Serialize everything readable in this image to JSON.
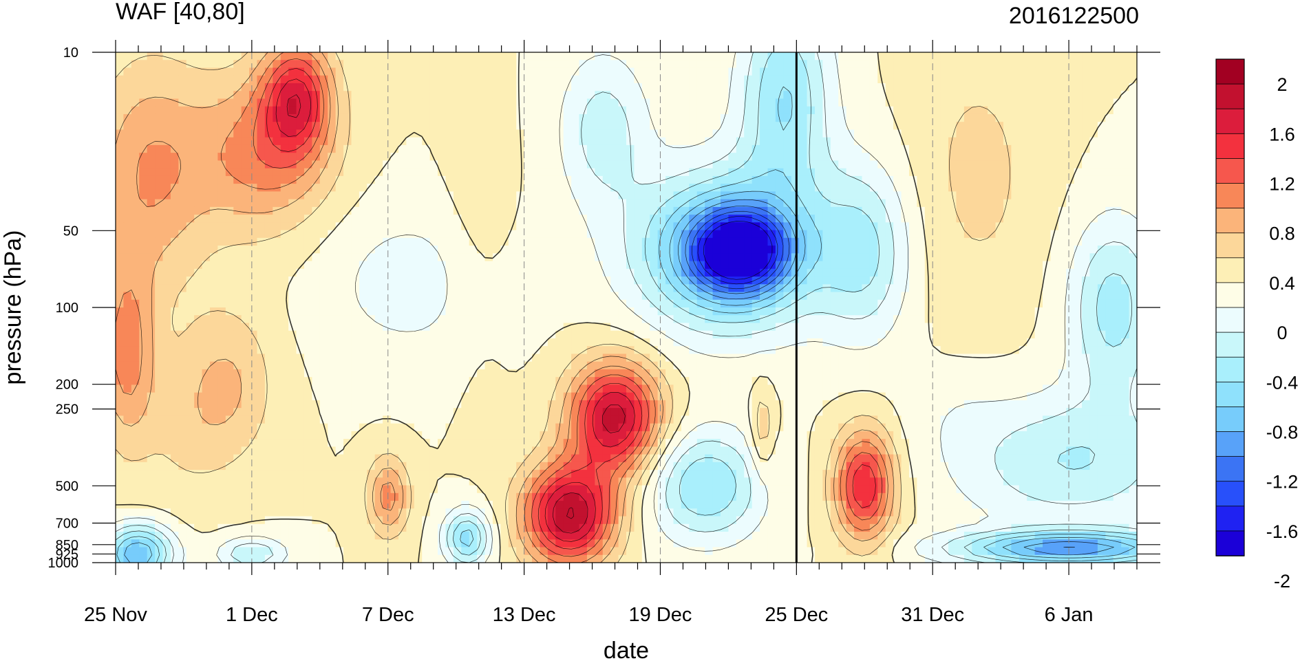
{
  "chart_data": {
    "type": "heatmap",
    "title_left": "WAF [40,80]",
    "title_right": "2016122500",
    "xlabel": "date",
    "ylabel": "pressure (hPa)",
    "x_ticks": [
      {
        "day": 0,
        "label": "25 Nov"
      },
      {
        "day": 6,
        "label": "1 Dec"
      },
      {
        "day": 12,
        "label": "7 Dec"
      },
      {
        "day": 18,
        "label": "13 Dec"
      },
      {
        "day": 24,
        "label": "19 Dec"
      },
      {
        "day": 30,
        "label": "25 Dec"
      },
      {
        "day": 36,
        "label": "31 Dec"
      },
      {
        "day": 42,
        "label": "6 Jan"
      }
    ],
    "x_range_days": [
      0,
      45
    ],
    "marker_day": 30,
    "y_ticks": [
      {
        "p": 10,
        "label": "10"
      },
      {
        "p": 50,
        "label": "50"
      },
      {
        "p": 100,
        "label": "100"
      },
      {
        "p": 200,
        "label": "200"
      },
      {
        "p": 250,
        "label": "250"
      },
      {
        "p": 500,
        "label": "500"
      },
      {
        "p": 700,
        "label": "700"
      },
      {
        "p": 850,
        "label": "850"
      },
      {
        "p": 925,
        "label": "925"
      },
      {
        "p": 1000,
        "label": "1000"
      }
    ],
    "y_scale": "log-pressure",
    "y_range": [
      1000,
      10
    ],
    "colorbar": {
      "colors": [
        "#1b00d8",
        "#1f22f2",
        "#2850fa",
        "#3b74f4",
        "#58a2f9",
        "#77ccfb",
        "#8fe1fc",
        "#a9effc",
        "#c9f7fa",
        "#ecfcfe",
        "#fefde7",
        "#fdefb6",
        "#fcd79a",
        "#fbb47a",
        "#f88758",
        "#f6574d",
        "#f3313e",
        "#dc1d3c",
        "#c2112f",
        "#a20022"
      ],
      "tick_labels": [
        "2",
        "1.6",
        "1.2",
        "0.8",
        "0.4",
        "0",
        "-0.4",
        "-0.8",
        "-1.2",
        "-1.6",
        "-2"
      ]
    },
    "fields": [
      {
        "v": 0.6,
        "d": 1.5,
        "p": 30,
        "rx": 2.5,
        "ry": 1.0
      },
      {
        "v": 0.7,
        "d": 0.5,
        "p": 150,
        "rx": 1.2,
        "ry": 0.8
      },
      {
        "v": 0.2,
        "d": 3.0,
        "p": 300,
        "rx": 2.0,
        "ry": 0.7
      },
      {
        "v": 1.1,
        "d": 8.0,
        "p": 15,
        "rx": 1.5,
        "ry": 0.5
      },
      {
        "v": 0.7,
        "d": 6.5,
        "p": 25,
        "rx": 3.0,
        "ry": 0.7
      },
      {
        "v": 0.4,
        "d": 5.0,
        "p": 200,
        "rx": 2.0,
        "ry": 0.7
      },
      {
        "v": -1.2,
        "d": 1.0,
        "p": 920,
        "rx": 1.5,
        "ry": 0.25
      },
      {
        "v": -0.6,
        "d": 6.0,
        "p": 920,
        "rx": 1.5,
        "ry": 0.15
      },
      {
        "v": 0.7,
        "d": 12.0,
        "p": 550,
        "rx": 0.9,
        "ry": 0.35
      },
      {
        "v": -0.3,
        "d": 13.0,
        "p": 80,
        "rx": 4.0,
        "ry": 0.7
      },
      {
        "v": 0.15,
        "d": 16.0,
        "p": 50,
        "rx": 1.5,
        "ry": 1.2
      },
      {
        "v": -0.9,
        "d": 15.5,
        "p": 800,
        "rx": 1.0,
        "ry": 0.25
      },
      {
        "v": 1.6,
        "d": 20.0,
        "p": 650,
        "rx": 2.0,
        "ry": 0.45
      },
      {
        "v": 1.5,
        "d": 22.0,
        "p": 270,
        "rx": 2.0,
        "ry": 0.5
      },
      {
        "v": -0.5,
        "d": 21.5,
        "p": 20,
        "rx": 2.0,
        "ry": 0.7
      },
      {
        "v": -1.3,
        "d": 27.0,
        "p": 60,
        "rx": 4.0,
        "ry": 0.7
      },
      {
        "v": -1.5,
        "d": 27.5,
        "p": 60,
        "rx": 2.0,
        "ry": 0.35
      },
      {
        "v": -0.8,
        "d": 29.5,
        "p": 15,
        "rx": 2.0,
        "ry": 0.9
      },
      {
        "v": -0.8,
        "d": 26.0,
        "p": 500,
        "rx": 2.5,
        "ry": 0.5
      },
      {
        "v": 0.4,
        "d": 28.5,
        "p": 300,
        "rx": 0.5,
        "ry": 0.4
      },
      {
        "v": 1.2,
        "d": 33.0,
        "p": 500,
        "rx": 1.3,
        "ry": 0.5
      },
      {
        "v": -0.6,
        "d": 33.0,
        "p": 60,
        "rx": 2.0,
        "ry": 0.8
      },
      {
        "v": 0.25,
        "d": 38.0,
        "p": 30,
        "rx": 3.0,
        "ry": 1.3
      },
      {
        "v": -0.1,
        "d": 37.0,
        "p": 250,
        "rx": 2.0,
        "ry": 0.4
      },
      {
        "v": -1.3,
        "d": 42.0,
        "p": 880,
        "rx": 5.0,
        "ry": 0.15
      },
      {
        "v": -0.6,
        "d": 42.0,
        "p": 400,
        "rx": 5.0,
        "ry": 0.6
      },
      {
        "v": -0.7,
        "d": 44.0,
        "p": 100,
        "rx": 2.0,
        "ry": 0.8
      }
    ]
  }
}
